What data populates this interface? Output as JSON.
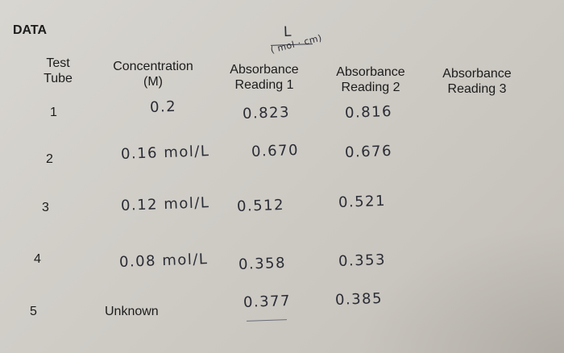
{
  "title": "DATA",
  "headers": {
    "test_tube": [
      "Test",
      "Tube"
    ],
    "concentration": [
      "Concentration",
      "(M)"
    ],
    "absorbance_1": [
      "Absorbance",
      "Reading 1"
    ],
    "absorbance_2": [
      "Absorbance",
      "Reading 2"
    ],
    "absorbance_3": [
      "Absorbance",
      "Reading 3"
    ]
  },
  "unit_annotation": {
    "numerator": "L",
    "denominator": "( mol · cm)"
  },
  "rows": [
    {
      "tube": "1",
      "concentration": "0.2",
      "reading1": "0.823",
      "reading2": "0.816"
    },
    {
      "tube": "2",
      "concentration": "0.16 mol/L",
      "reading1": "0.670",
      "reading2": "0.676"
    },
    {
      "tube": "3",
      "concentration": "0.12 mol/L",
      "reading1": "0.512",
      "reading2": "0.521"
    },
    {
      "tube": "4",
      "concentration": "0.08 mol/L",
      "reading1": "0.358",
      "reading2": "0.353"
    },
    {
      "tube": "5",
      "concentration": "Unknown",
      "reading1": "0.377",
      "reading2": "0.385"
    }
  ]
}
